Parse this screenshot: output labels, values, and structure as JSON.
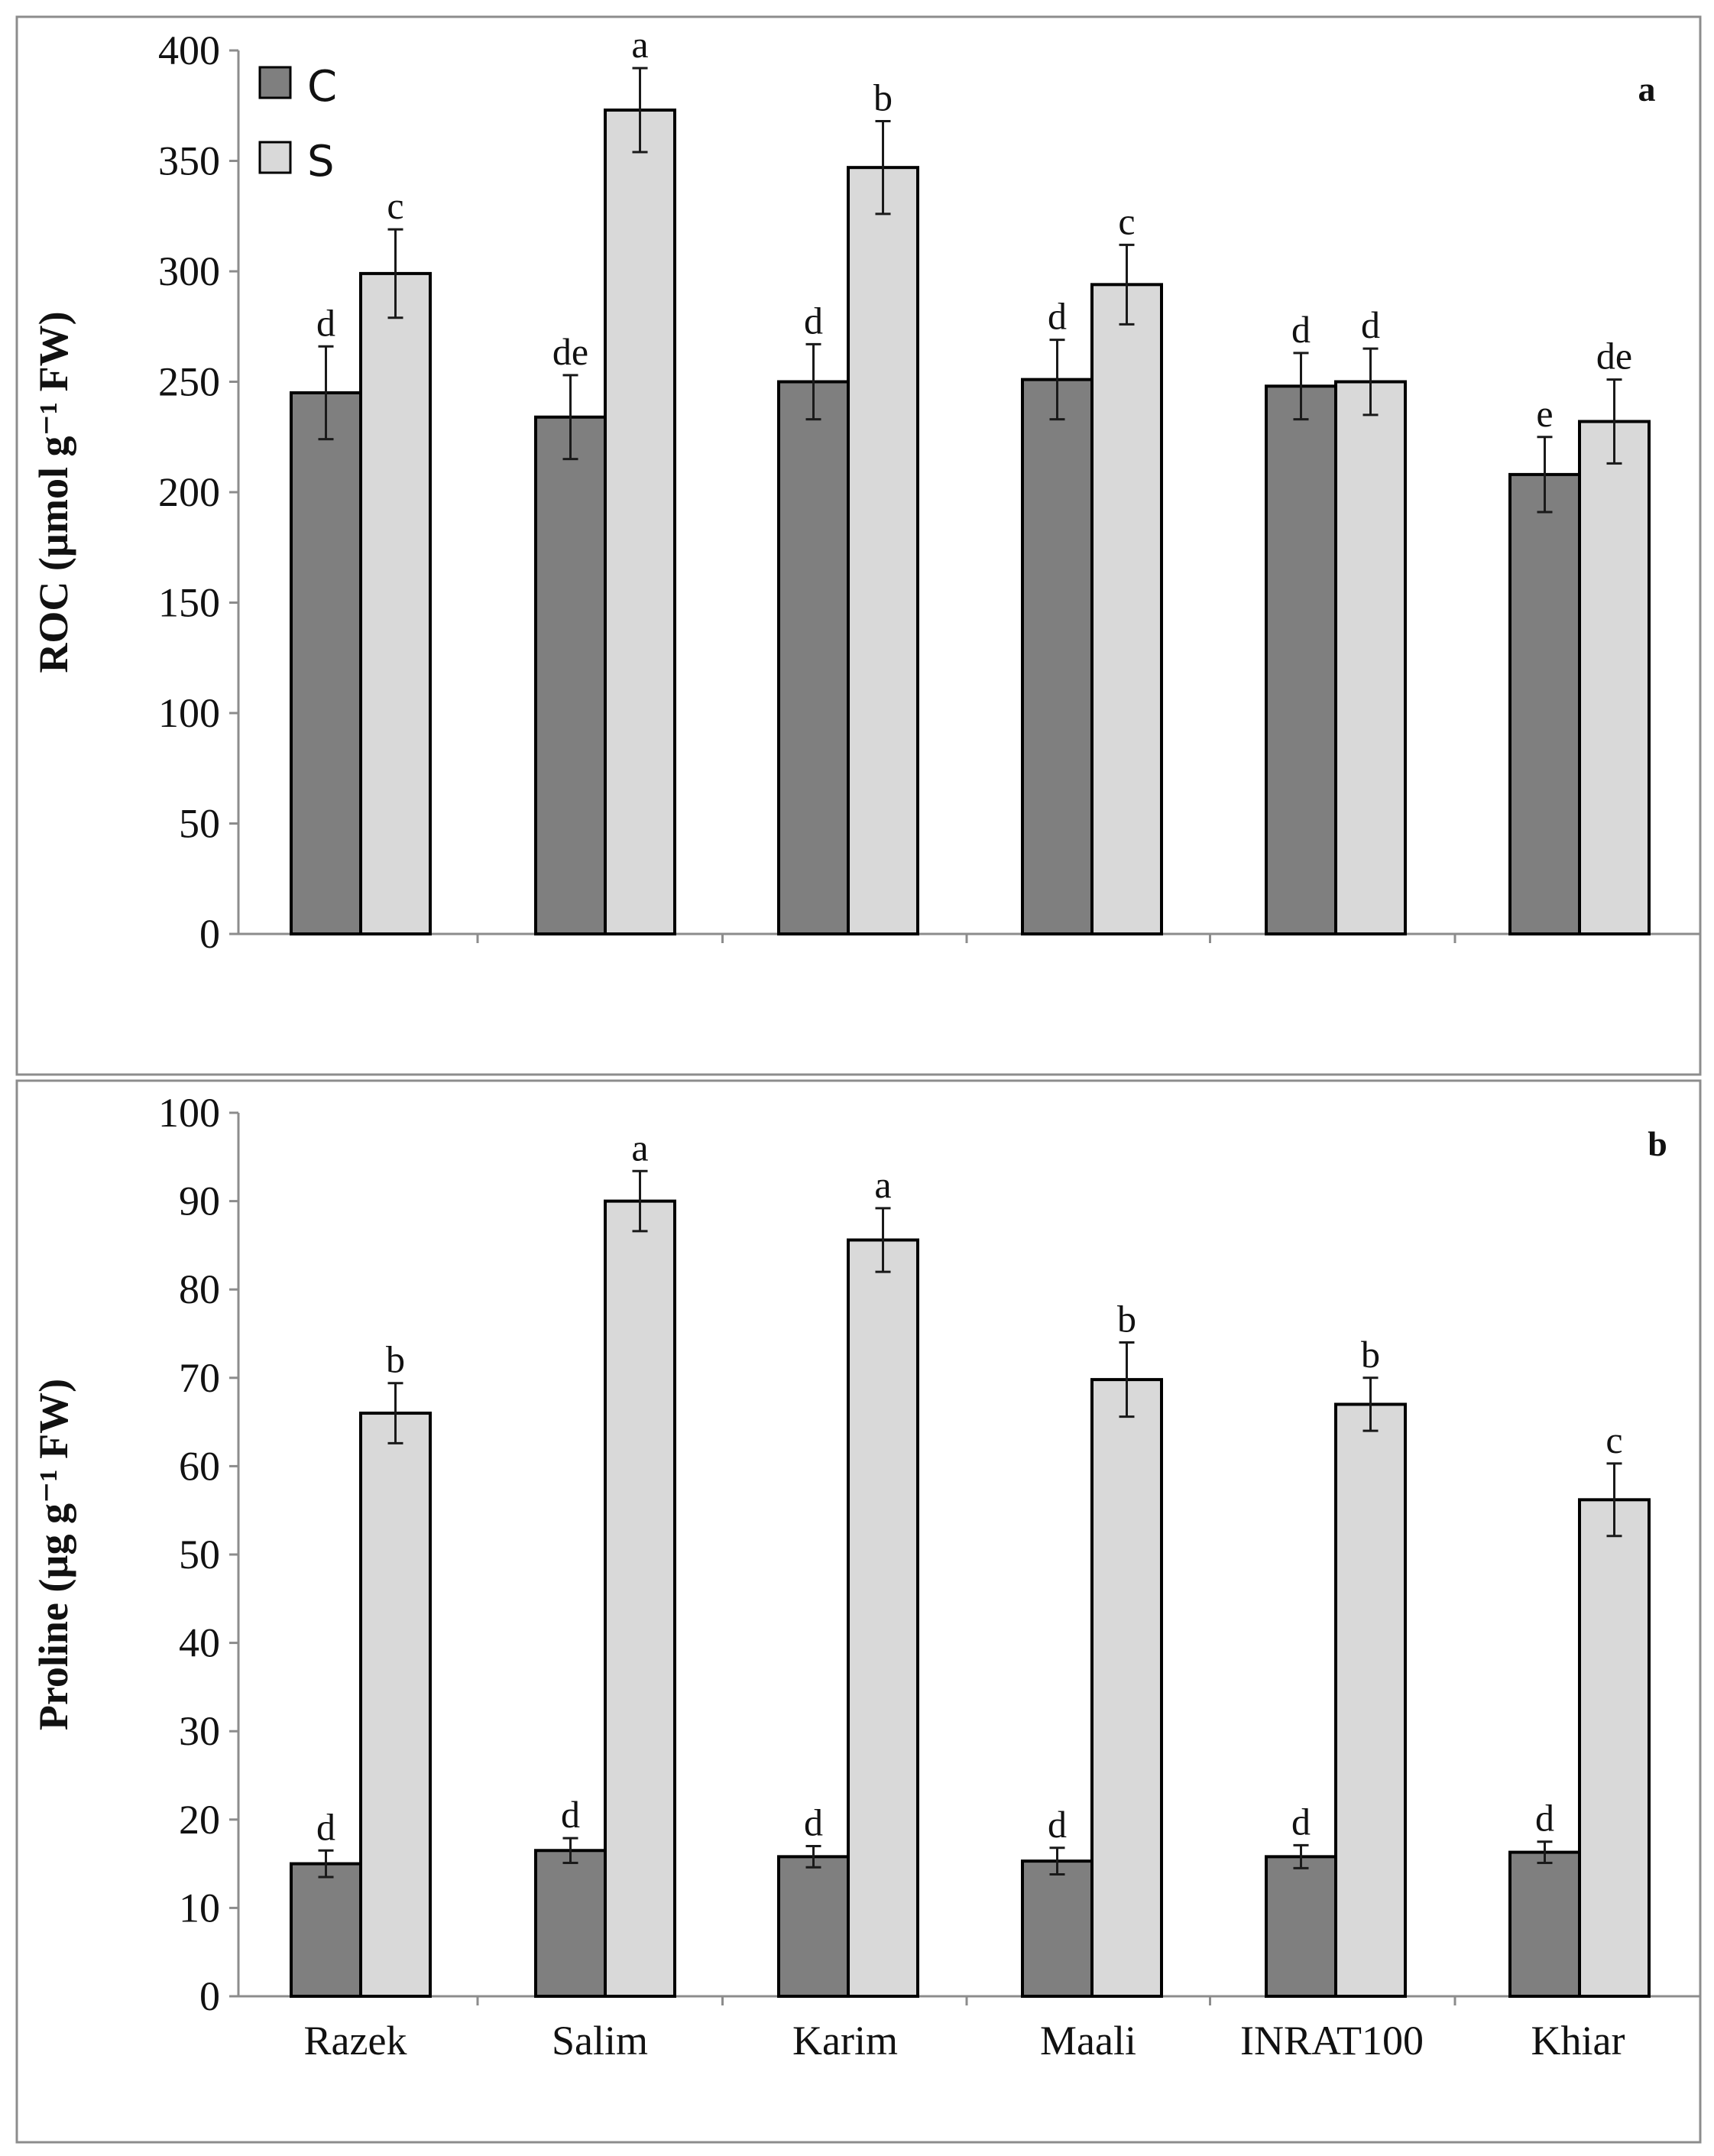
{
  "chart_data": [
    {
      "type": "bar",
      "panel_label": "a",
      "ylabel": "ROC (µmol g⁻¹ FW)",
      "ylim": [
        0,
        400
      ],
      "yticks": [
        0,
        50,
        100,
        150,
        200,
        250,
        300,
        350,
        400
      ],
      "categories": [
        "Razek",
        "Salim",
        "Karim",
        "Maali",
        "INRAT100",
        "Khiar"
      ],
      "show_category_labels": false,
      "legend": [
        "C",
        "S"
      ],
      "series": [
        {
          "name": "C",
          "color": "#7f7f7f",
          "values": [
            245,
            234,
            250,
            251,
            248,
            208
          ],
          "errors": [
            21,
            19,
            17,
            18,
            15,
            17
          ],
          "labels": [
            "d",
            "de",
            "d",
            "d",
            "d",
            "e"
          ]
        },
        {
          "name": "S",
          "color": "#d9d9d9",
          "values": [
            299,
            373,
            347,
            294,
            250,
            232
          ],
          "errors": [
            20,
            19,
            21,
            18,
            15,
            19
          ],
          "labels": [
            "c",
            "a",
            "b",
            "c",
            "d",
            "de"
          ]
        }
      ]
    },
    {
      "type": "bar",
      "panel_label": "b",
      "ylabel": "Proline (µg g⁻¹ FW)",
      "ylim": [
        0,
        100
      ],
      "yticks": [
        0,
        10,
        20,
        30,
        40,
        50,
        60,
        70,
        80,
        90,
        100
      ],
      "categories": [
        "Razek",
        "Salim",
        "Karim",
        "Maali",
        "INRAT100",
        "Khiar"
      ],
      "show_category_labels": true,
      "series": [
        {
          "name": "C",
          "color": "#7f7f7f",
          "values": [
            15,
            16.5,
            15.8,
            15.3,
            15.8,
            16.3
          ],
          "errors": [
            1.5,
            1.4,
            1.2,
            1.5,
            1.3,
            1.2
          ],
          "labels": [
            "d",
            "d",
            "d",
            "d",
            "d",
            "d"
          ]
        },
        {
          "name": "S",
          "color": "#d9d9d9",
          "values": [
            66,
            90,
            85.6,
            69.8,
            67,
            56.2
          ],
          "errors": [
            3.4,
            3.4,
            3.6,
            4.2,
            3,
            4.1
          ],
          "labels": [
            "b",
            "a",
            "a",
            "b",
            "b",
            "c"
          ]
        }
      ]
    }
  ]
}
